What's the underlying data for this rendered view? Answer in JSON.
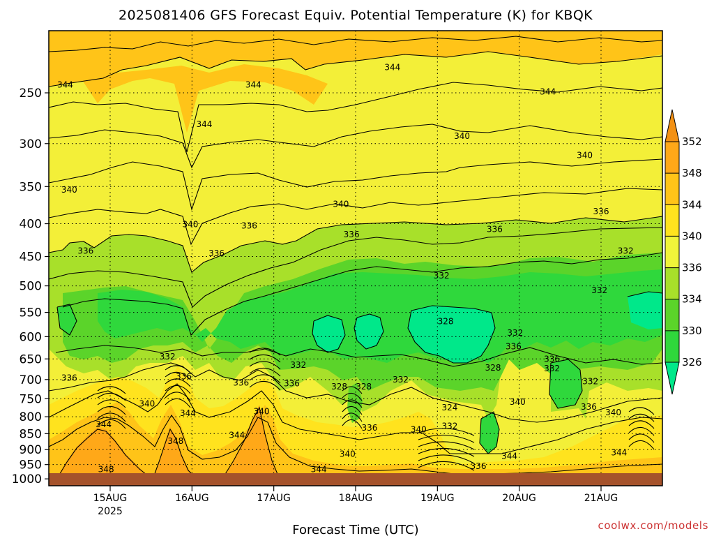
{
  "title": "2025081406 GFS Forecast Equiv. Potential Temperature (K) for KBQK",
  "credit": "coolwx.com/models",
  "chart_data": {
    "type": "heatmap",
    "title": "2025081406 GFS Forecast Equiv. Potential Temperature (K) for KBQK",
    "xlabel": "Forecast Time (UTC)",
    "ylabel": "",
    "x_ticks": [
      {
        "label": "15AUG",
        "sub": "2025",
        "day": 15
      },
      {
        "label": "16AUG",
        "sub": "",
        "day": 16
      },
      {
        "label": "17AUG",
        "sub": "",
        "day": 17
      },
      {
        "label": "18AUG",
        "sub": "",
        "day": 18
      },
      {
        "label": "19AUG",
        "sub": "",
        "day": 19
      },
      {
        "label": "20AUG",
        "sub": "",
        "day": 20
      },
      {
        "label": "21AUG",
        "sub": "",
        "day": 21
      }
    ],
    "xlim": [
      14.25,
      21.75
    ],
    "y_ticks": [
      250,
      300,
      350,
      400,
      450,
      500,
      550,
      600,
      650,
      700,
      750,
      800,
      850,
      900,
      950,
      1000
    ],
    "ylim": [
      1025,
      200
    ],
    "y_scale": "log pressure",
    "grid": true,
    "colorbar": {
      "levels": [
        326,
        330,
        334,
        336,
        340,
        344,
        348,
        352
      ],
      "labels": [
        "326",
        "330",
        "334",
        "336",
        "340",
        "344",
        "348",
        "352"
      ],
      "colors": [
        "#00e88a",
        "#2fd83c",
        "#5bd42a",
        "#a8e02a",
        "#f0f43a",
        "#ffe31e",
        "#ffc418",
        "#ffa818",
        "#f39114"
      ]
    },
    "ground_color": "#a5522b",
    "contour_labels": [
      {
        "text": "344",
        "day": 14.45,
        "p": 243
      },
      {
        "text": "344",
        "day": 16.15,
        "p": 280
      },
      {
        "text": "344",
        "day": 16.75,
        "p": 243
      },
      {
        "text": "344",
        "day": 18.45,
        "p": 228
      },
      {
        "text": "344",
        "day": 20.35,
        "p": 249
      },
      {
        "text": "340",
        "day": 14.5,
        "p": 354
      },
      {
        "text": "340",
        "day": 15.98,
        "p": 401
      },
      {
        "text": "340",
        "day": 17.82,
        "p": 373
      },
      {
        "text": "340",
        "day": 19.3,
        "p": 292
      },
      {
        "text": "340",
        "day": 20.8,
        "p": 313
      },
      {
        "text": "336",
        "day": 14.7,
        "p": 441
      },
      {
        "text": "336",
        "day": 16.3,
        "p": 445
      },
      {
        "text": "336",
        "day": 16.7,
        "p": 403
      },
      {
        "text": "336",
        "day": 17.95,
        "p": 416
      },
      {
        "text": "336",
        "day": 19.7,
        "p": 408
      },
      {
        "text": "336",
        "day": 21.0,
        "p": 383
      },
      {
        "text": "332",
        "day": 19.05,
        "p": 482
      },
      {
        "text": "332",
        "day": 21.3,
        "p": 441
      },
      {
        "text": "332",
        "day": 20.98,
        "p": 508
      },
      {
        "text": "328",
        "day": 19.1,
        "p": 568
      },
      {
        "text": "336",
        "day": 14.5,
        "p": 696
      },
      {
        "text": "332",
        "day": 15.7,
        "p": 645
      },
      {
        "text": "336",
        "day": 15.9,
        "p": 692
      },
      {
        "text": "340",
        "day": 15.45,
        "p": 764
      },
      {
        "text": "344",
        "day": 15.95,
        "p": 790
      },
      {
        "text": "344",
        "day": 14.92,
        "p": 822
      },
      {
        "text": "348",
        "day": 15.8,
        "p": 873
      },
      {
        "text": "348",
        "day": 14.95,
        "p": 966
      },
      {
        "text": "336",
        "day": 16.6,
        "p": 708
      },
      {
        "text": "332",
        "day": 17.3,
        "p": 664
      },
      {
        "text": "336",
        "day": 17.22,
        "p": 710
      },
      {
        "text": "340",
        "day": 16.85,
        "p": 785
      },
      {
        "text": "344",
        "day": 16.55,
        "p": 855
      },
      {
        "text": "344",
        "day": 17.55,
        "p": 966
      },
      {
        "text": "328",
        "day": 17.8,
        "p": 718
      },
      {
        "text": "328",
        "day": 18.1,
        "p": 718
      },
      {
        "text": "332",
        "day": 18.55,
        "p": 700
      },
      {
        "text": "336",
        "day": 18.17,
        "p": 833
      },
      {
        "text": "340",
        "day": 18.77,
        "p": 838
      },
      {
        "text": "340",
        "day": 17.9,
        "p": 915
      },
      {
        "text": "324",
        "day": 19.15,
        "p": 774
      },
      {
        "text": "332",
        "day": 19.15,
        "p": 827
      },
      {
        "text": "336",
        "day": 19.5,
        "p": 955
      },
      {
        "text": "328",
        "day": 19.68,
        "p": 671
      },
      {
        "text": "332",
        "day": 19.95,
        "p": 592
      },
      {
        "text": "336",
        "day": 19.93,
        "p": 622
      },
      {
        "text": "340",
        "day": 19.98,
        "p": 759
      },
      {
        "text": "344",
        "day": 19.88,
        "p": 921
      },
      {
        "text": "336",
        "day": 20.4,
        "p": 650
      },
      {
        "text": "332",
        "day": 20.4,
        "p": 673
      },
      {
        "text": "332",
        "day": 20.87,
        "p": 705
      },
      {
        "text": "336",
        "day": 20.85,
        "p": 772
      },
      {
        "text": "340",
        "day": 21.15,
        "p": 788
      },
      {
        "text": "344",
        "day": 21.22,
        "p": 910
      }
    ]
  }
}
